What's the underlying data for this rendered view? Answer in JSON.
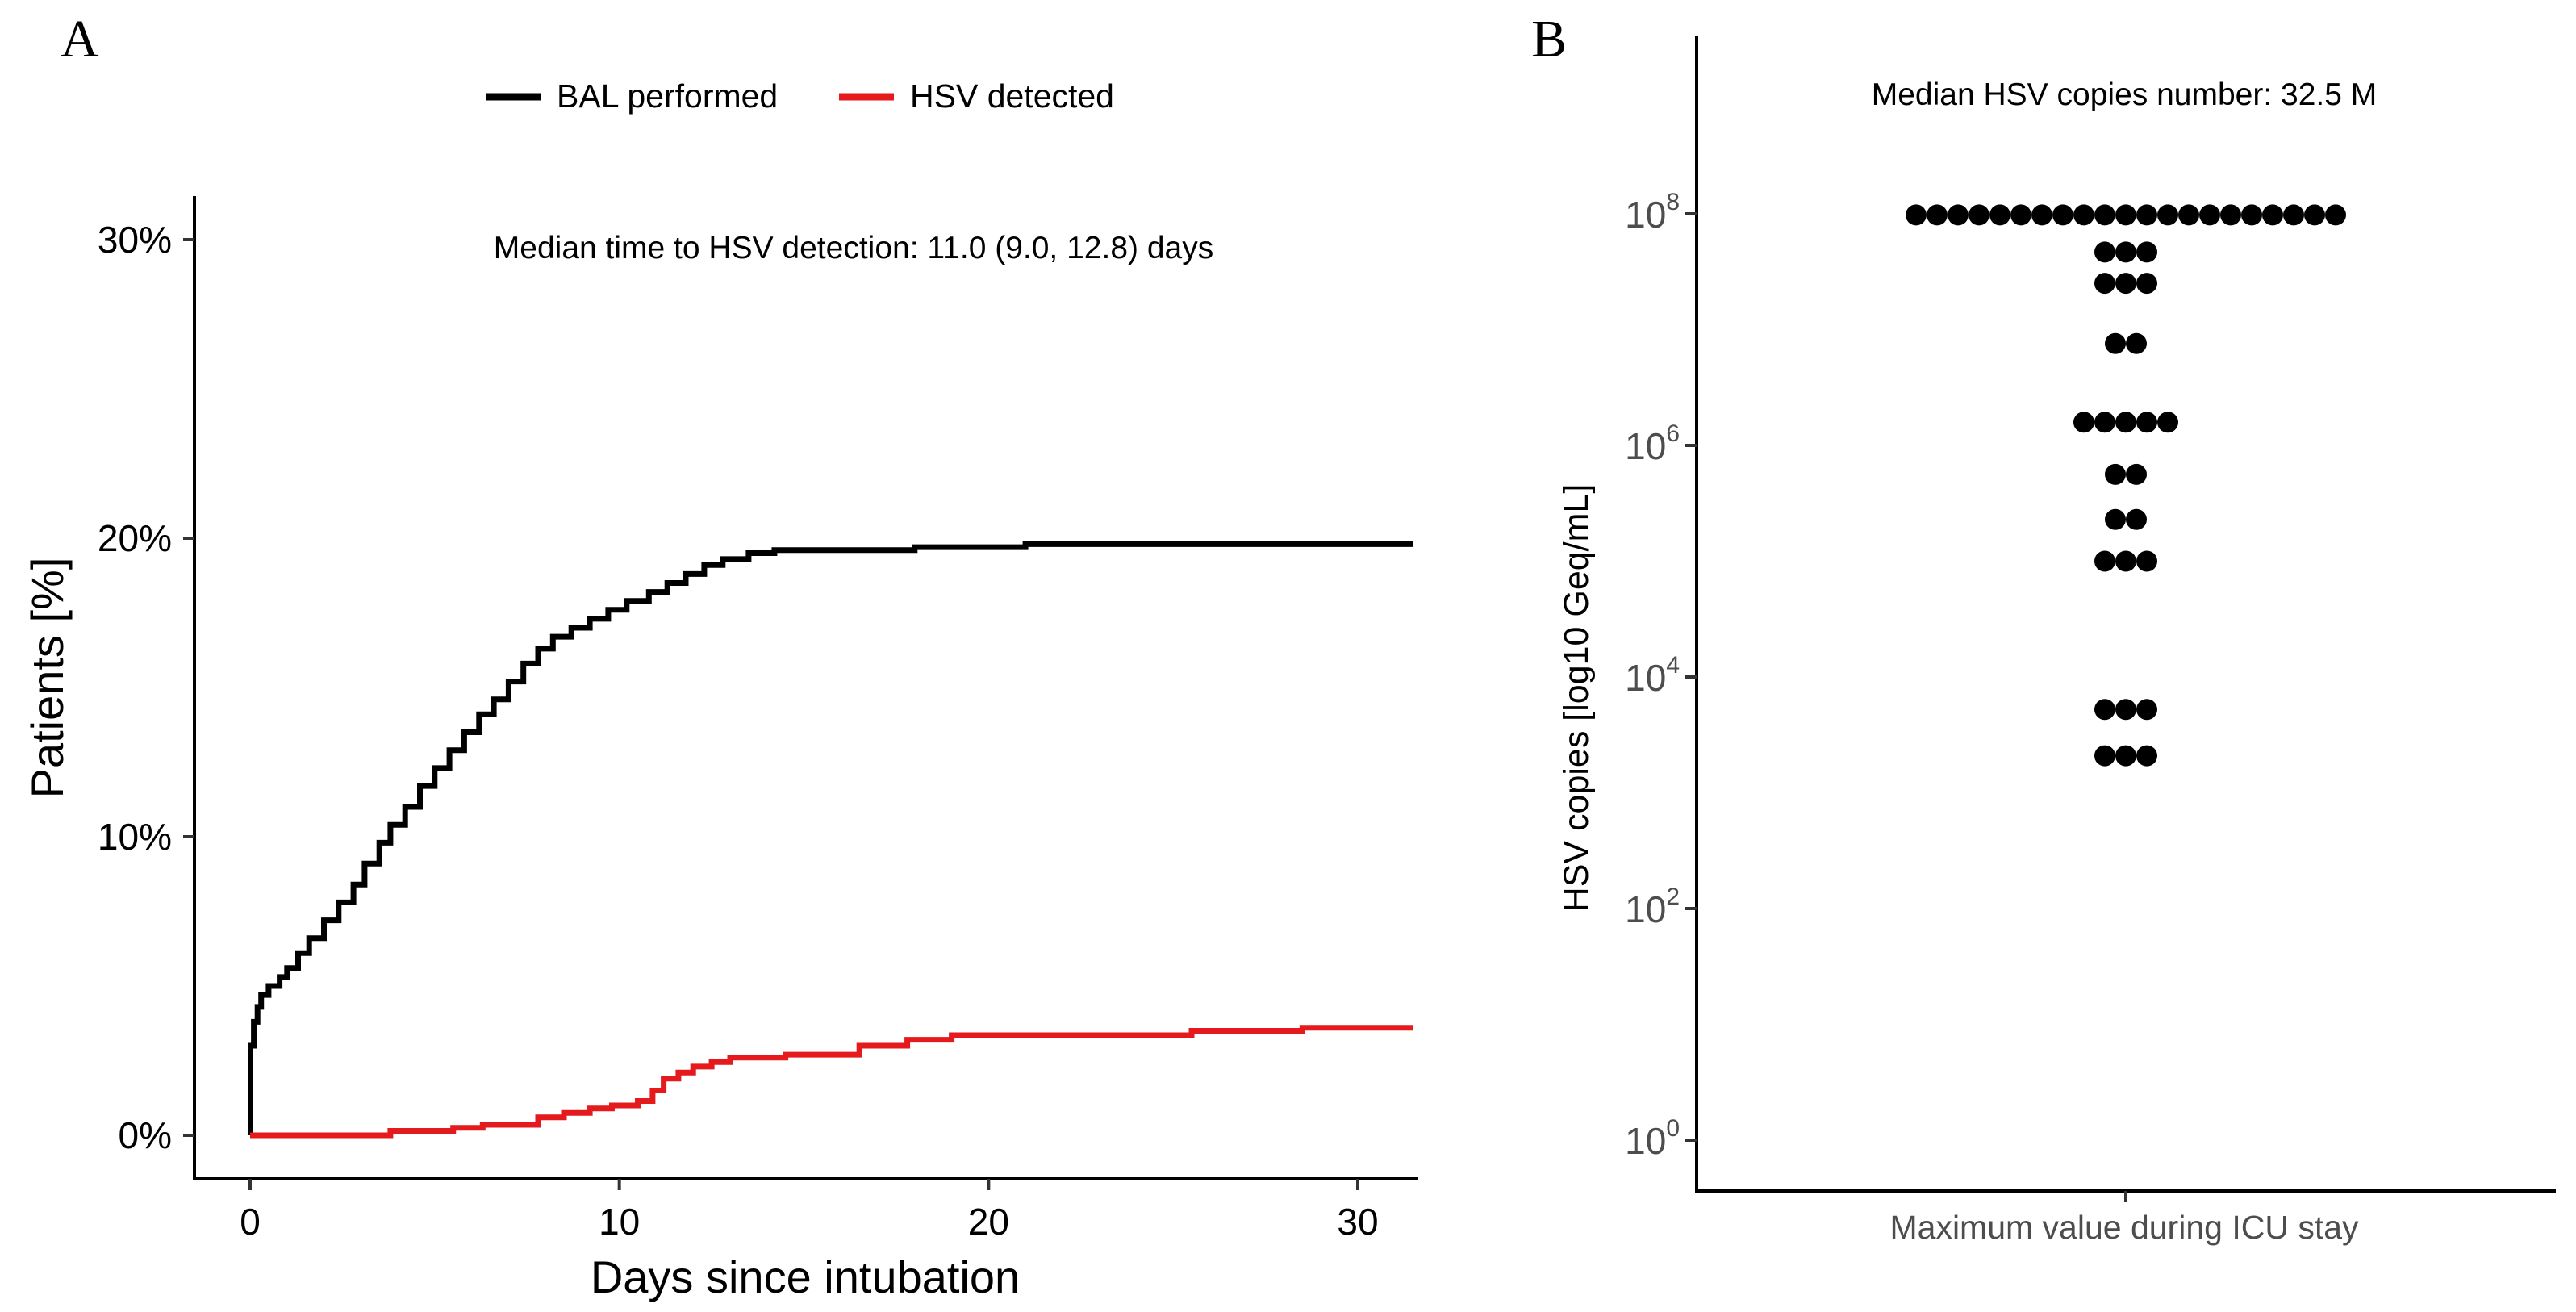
{
  "panel_a": {
    "label": "A",
    "annotation": "Median time to HSV detection: 11.0 (9.0, 12.8) days",
    "legend": [
      {
        "label": "BAL performed",
        "color": "#000000"
      },
      {
        "label": "HSV detected",
        "color": "#e41a1c"
      }
    ]
  },
  "panel_b": {
    "label": "B",
    "annotation": "Median HSV copies number: 32.5 M"
  },
  "chart_data": [
    {
      "type": "line",
      "subtype": "step",
      "title": "",
      "xlabel": "Days since intubation",
      "ylabel": "Patients [%]",
      "xlim": [
        -1.5,
        31.5
      ],
      "ylim": [
        -1.5,
        31.5
      ],
      "xticks": [
        0,
        10,
        20,
        30
      ],
      "xtick_labels": [
        "0",
        "10",
        "20",
        "30"
      ],
      "yticks": [
        0,
        10,
        20,
        30
      ],
      "ytick_labels": [
        "0%",
        "10%",
        "20%",
        "30%"
      ],
      "legend_position": "top",
      "series": [
        {
          "name": "BAL performed",
          "color": "#000000",
          "x": [
            0,
            0.01,
            0.1,
            0.2,
            0.3,
            0.5,
            0.8,
            1.0,
            1.3,
            1.6,
            2.0,
            2.4,
            2.8,
            3.1,
            3.5,
            3.8,
            4.2,
            4.6,
            5.0,
            5.4,
            5.8,
            6.2,
            6.6,
            7.0,
            7.4,
            7.8,
            8.2,
            8.7,
            9.2,
            9.7,
            10.2,
            10.8,
            11.3,
            11.8,
            12.3,
            12.8,
            13.5,
            14.2,
            16.0,
            18.0,
            21.0,
            24.0,
            28.0,
            31.5
          ],
          "y": [
            0,
            3.0,
            3.8,
            4.3,
            4.7,
            5.0,
            5.3,
            5.6,
            6.1,
            6.6,
            7.2,
            7.8,
            8.4,
            9.1,
            9.8,
            10.4,
            11.0,
            11.7,
            12.3,
            12.9,
            13.5,
            14.1,
            14.6,
            15.2,
            15.8,
            16.3,
            16.7,
            17.0,
            17.3,
            17.6,
            17.9,
            18.2,
            18.5,
            18.8,
            19.1,
            19.3,
            19.5,
            19.6,
            19.6,
            19.7,
            19.8,
            19.8,
            19.8,
            19.8
          ]
        },
        {
          "name": "HSV detected",
          "color": "#e41a1c",
          "x": [
            0,
            3.8,
            5.5,
            6.3,
            7.8,
            8.5,
            9.2,
            9.8,
            10.5,
            10.9,
            11.2,
            11.6,
            12.0,
            12.5,
            13.0,
            14.5,
            16.5,
            17.8,
            19.0,
            22.0,
            25.5,
            28.5,
            31.5
          ],
          "y": [
            0,
            0.15,
            0.25,
            0.35,
            0.6,
            0.75,
            0.9,
            1.0,
            1.15,
            1.5,
            1.9,
            2.1,
            2.3,
            2.45,
            2.6,
            2.7,
            3.0,
            3.2,
            3.35,
            3.35,
            3.5,
            3.6,
            3.6
          ]
        }
      ]
    },
    {
      "type": "scatter",
      "subtype": "dotplot",
      "title": "",
      "xlabel": "Maximum value during ICU stay",
      "ylabel": "HSV copies [log10 Geq/mL]",
      "yscale": "log10",
      "ylim_log10": [
        -0.5,
        9.4
      ],
      "yticks_log10": [
        0,
        2,
        4,
        6,
        8
      ],
      "ytick_labels": [
        "10^0",
        "10^2",
        "10^4",
        "10^6",
        "10^8"
      ],
      "dot_color": "#000000",
      "bins": [
        {
          "log10_value": 7.99,
          "count": 21
        },
        {
          "log10_value": 7.67,
          "count": 3
        },
        {
          "log10_value": 7.4,
          "count": 3
        },
        {
          "log10_value": 6.88,
          "count": 2
        },
        {
          "log10_value": 6.2,
          "count": 5
        },
        {
          "log10_value": 5.75,
          "count": 2
        },
        {
          "log10_value": 5.36,
          "count": 2
        },
        {
          "log10_value": 5.0,
          "count": 3
        },
        {
          "log10_value": 3.72,
          "count": 3
        },
        {
          "log10_value": 3.32,
          "count": 3
        }
      ]
    }
  ]
}
